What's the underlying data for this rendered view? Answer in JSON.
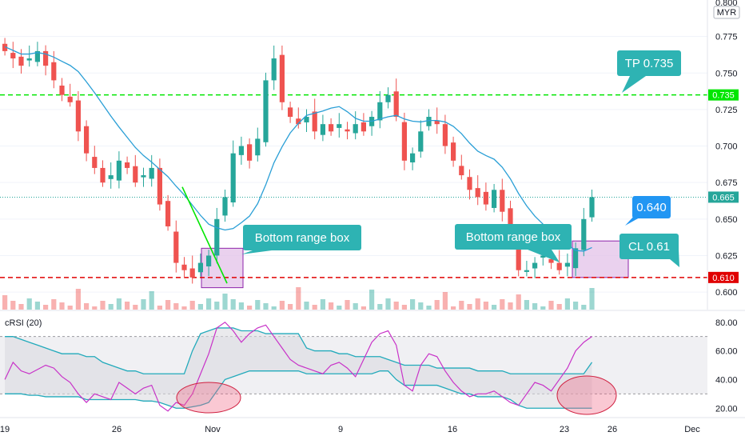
{
  "colors": {
    "up": "#26a69a",
    "down": "#ef5350",
    "ma": "#2a9fd6",
    "green_line": "#00e600",
    "red_line": "#e00000",
    "last_price": "#26a69a",
    "callout": "#2eb3b3",
    "callout_blue": "#2196f3",
    "box_fill": "#e1bee7",
    "box_stroke": "#8e24aa",
    "crsi_line": "#c832c8",
    "crsi_band": "#22aabb",
    "ellipse": "#f06080"
  },
  "header": {
    "currency": "MYR",
    "top_tick_partial": "0.800"
  },
  "chart_data": [
    {
      "type": "candlestick",
      "price_axis": {
        "ylim": [
          0.588,
          0.8
        ],
        "ticks": [
          "0.775",
          "0.750",
          "0.725",
          "0.700",
          "0.675",
          "0.650",
          "0.625",
          "0.600"
        ]
      },
      "x_axis_labels": [
        {
          "text": "19",
          "day": 0
        },
        {
          "text": "26",
          "day": 7
        },
        {
          "text": "Nov",
          "day": 13
        },
        {
          "text": "9",
          "day": 21
        },
        {
          "text": "16",
          "day": 28
        },
        {
          "text": "23",
          "day": 35
        },
        {
          "text": "26",
          "day": 38
        },
        {
          "text": "Dec",
          "day": 43
        }
      ],
      "levels": [
        {
          "name": "tp",
          "value": 0.735,
          "label": "0.735",
          "style": "dashed-green"
        },
        {
          "name": "cl",
          "value": 0.61,
          "label": "0.610",
          "style": "dashed-red"
        },
        {
          "name": "last",
          "value": 0.665,
          "label": "0.665",
          "style": "dotted-teal"
        }
      ],
      "callouts": {
        "tp": "TP 0.735",
        "cl": "CL 0.61",
        "current": "0.640",
        "box_left": "Bottom range box",
        "box_right": "Bottom range box"
      },
      "boxes": [
        {
          "day_start": 12.5,
          "day_end": 15.1,
          "low": 0.603,
          "high": 0.63
        },
        {
          "day_start": 35.7,
          "day_end": 39.2,
          "low": 0.61,
          "high": 0.635
        }
      ],
      "trend_segment": {
        "day_start": 11.1,
        "value_start": 0.672,
        "day_end": 13.9,
        "value_end": 0.606
      },
      "closes": [
        0.765,
        0.76,
        0.755,
        0.76,
        0.765,
        0.755,
        0.745,
        0.735,
        0.73,
        0.71,
        0.695,
        0.685,
        0.675,
        0.68,
        0.69,
        0.685,
        0.675,
        0.68,
        0.685,
        0.66,
        0.645,
        0.62,
        0.615,
        0.61,
        0.62,
        0.625,
        0.65,
        0.665,
        0.695,
        0.7,
        0.69,
        0.705,
        0.745,
        0.76,
        0.73,
        0.72,
        0.715,
        0.72,
        0.71,
        0.715,
        0.71,
        0.715,
        0.71,
        0.715,
        0.71,
        0.72,
        0.73,
        0.735,
        0.72,
        0.69,
        0.695,
        0.71,
        0.72,
        0.715,
        0.7,
        0.69,
        0.68,
        0.67,
        0.665,
        0.66,
        0.67,
        0.655,
        0.64,
        0.615,
        0.615,
        0.62,
        0.625,
        0.62,
        0.615,
        0.62,
        0.63,
        0.65,
        0.665
      ]
    },
    {
      "type": "line",
      "title": "cRSI (20)",
      "ylim": [
        14,
        86
      ],
      "ticks": [
        "80.00",
        "60.00",
        "40.00",
        "20.00"
      ],
      "series": [
        {
          "role": "crsi",
          "values": [
            40,
            52,
            46,
            44,
            47,
            50,
            48,
            42,
            38,
            30,
            24,
            30,
            28,
            26,
            38,
            34,
            30,
            34,
            36,
            22,
            18,
            24,
            22,
            30,
            44,
            58,
            76,
            80,
            74,
            66,
            72,
            76,
            78,
            70,
            62,
            54,
            50,
            48,
            46,
            44,
            50,
            52,
            48,
            42,
            54,
            66,
            72,
            74,
            64,
            36,
            32,
            50,
            58,
            56,
            46,
            38,
            32,
            28,
            30,
            30,
            32,
            28,
            24,
            22,
            30,
            38,
            36,
            32,
            40,
            48,
            60,
            66,
            70
          ]
        },
        {
          "role": "upper-band",
          "values": [
            70,
            70,
            68,
            66,
            64,
            62,
            60,
            58,
            58,
            58,
            56,
            56,
            52,
            50,
            48,
            46,
            46,
            44,
            44,
            44,
            44,
            44,
            44,
            60,
            72,
            74,
            76,
            76,
            76,
            74,
            74,
            74,
            72,
            72,
            72,
            72,
            72,
            62,
            60,
            60,
            60,
            58,
            58,
            56,
            56,
            56,
            56,
            54,
            52,
            50,
            50,
            50,
            50,
            48,
            48,
            48,
            48,
            48,
            46,
            46,
            46,
            46,
            44,
            44,
            44,
            44,
            44,
            44,
            44,
            44,
            44,
            44,
            52
          ]
        },
        {
          "role": "lower-band",
          "values": [
            30,
            30,
            30,
            29,
            29,
            28,
            28,
            28,
            28,
            28,
            26,
            26,
            26,
            26,
            26,
            26,
            26,
            25,
            25,
            24,
            22,
            20,
            20,
            21,
            22,
            24,
            32,
            40,
            42,
            44,
            46,
            46,
            46,
            46,
            46,
            46,
            46,
            44,
            44,
            44,
            44,
            44,
            44,
            44,
            44,
            44,
            46,
            46,
            40,
            36,
            36,
            36,
            36,
            36,
            34,
            32,
            30,
            30,
            28,
            28,
            28,
            28,
            26,
            22,
            20,
            20,
            20,
            20,
            20,
            20,
            20,
            20,
            20
          ]
        }
      ]
    }
  ]
}
